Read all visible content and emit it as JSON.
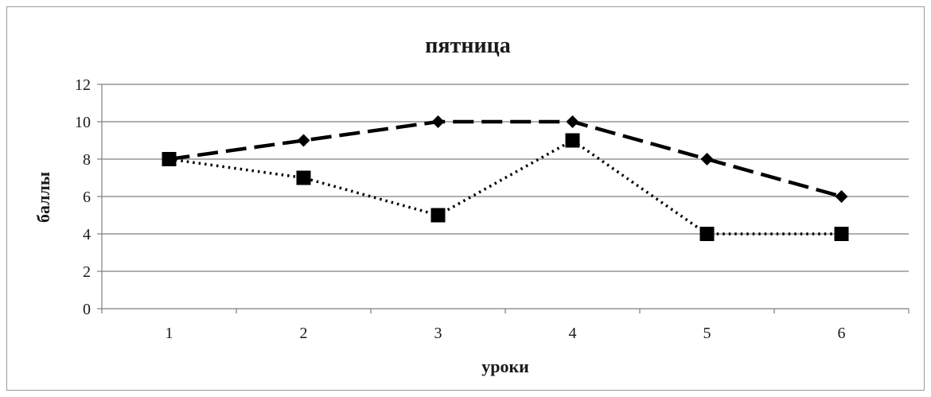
{
  "chart_data": {
    "type": "line",
    "title": "пятница",
    "xlabel": "уроки",
    "ylabel": "баллы",
    "categories": [
      "1",
      "2",
      "3",
      "4",
      "5",
      "6"
    ],
    "ylim": [
      0,
      12
    ],
    "yticks": [
      "0",
      "2",
      "4",
      "6",
      "8",
      "10",
      "12"
    ],
    "grid": true,
    "legend": "none",
    "series": [
      {
        "values": [
          8,
          9,
          10,
          10,
          8,
          6
        ],
        "line_style": "dashed",
        "marker": "diamond",
        "color": "#000000"
      },
      {
        "values": [
          8,
          7,
          5,
          9,
          4,
          4
        ],
        "line_style": "dotted",
        "marker": "square",
        "color": "#000000"
      }
    ]
  }
}
